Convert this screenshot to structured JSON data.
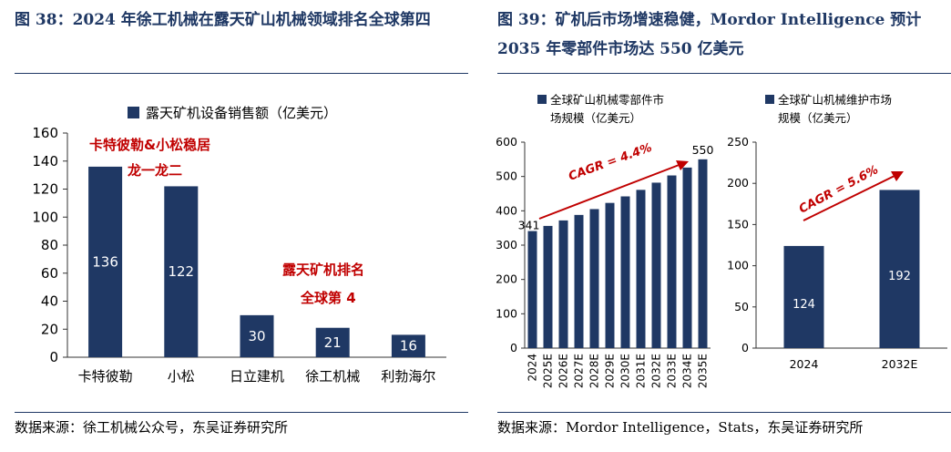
{
  "left": {
    "title": "图 38：2024 年徐工机械在露天矿山机械领域排名全球第四",
    "source": "数据来源：徐工机械公众号，东吴证券研究所"
  },
  "right": {
    "title": "图 39：矿机后市场增速稳健，Mordor Intelligence 预计 2035 年零部件市场达 550 亿美元",
    "source": "数据来源：Mordor Intelligence，Stats，东吴证券研究所"
  },
  "colors": {
    "bar": "#1f3864",
    "title": "#1f3864",
    "annotation": "#c00000"
  },
  "chart_data": [
    {
      "type": "bar",
      "legend": "露天矿机设备销售额（亿美元）",
      "categories": [
        "卡特彼勒",
        "小松",
        "日立建机",
        "徐工机械",
        "利勃海尔"
      ],
      "values": [
        136,
        122,
        30,
        21,
        16
      ],
      "ylim": [
        0,
        160
      ],
      "yticks": [
        0,
        20,
        40,
        60,
        80,
        100,
        120,
        140,
        160
      ],
      "annotations": [
        "卡特彼勒&小松稳居",
        "龙一龙二",
        "露天矿机排名",
        "全球第 4"
      ]
    },
    {
      "type": "bar",
      "legend": [
        "全球矿山机械零部件市",
        "场规模（亿美元）"
      ],
      "categories": [
        "2024",
        "2025E",
        "2026E",
        "2027E",
        "2028E",
        "2029E",
        "2030E",
        "2031E",
        "2032E",
        "2033E",
        "2034E",
        "2035E"
      ],
      "values": [
        341,
        356,
        372,
        388,
        405,
        423,
        442,
        461,
        482,
        503,
        526,
        550
      ],
      "value_labels": {
        "first": "341",
        "last": "550"
      },
      "ylim": [
        0,
        600
      ],
      "yticks": [
        0,
        100,
        200,
        300,
        400,
        500,
        600
      ],
      "annotation": "CAGR = 4.4%"
    },
    {
      "type": "bar",
      "legend": [
        "全球矿山机械维护市场",
        "规模（亿美元）"
      ],
      "categories": [
        "2024",
        "2032E"
      ],
      "values": [
        124,
        192
      ],
      "ylim": [
        0,
        250
      ],
      "yticks": [
        0,
        50,
        100,
        150,
        200,
        250
      ],
      "annotation": "CAGR = 5.6%"
    }
  ]
}
